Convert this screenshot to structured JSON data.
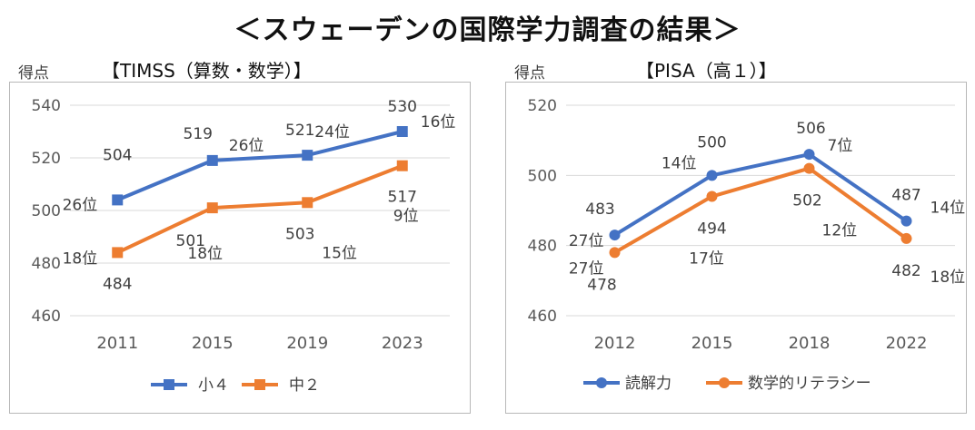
{
  "title": "＜スウェーデンの国際学力調査の結果＞",
  "chart_data": [
    {
      "type": "line",
      "title": "【TIMSS（算数・数学）】",
      "ylabel": "得点",
      "categories": [
        "2011",
        "2015",
        "2019",
        "2023"
      ],
      "ylim": [
        460,
        540
      ],
      "yticks": [
        460,
        480,
        500,
        520,
        540
      ],
      "grid": true,
      "legend": "bottom",
      "series": [
        {
          "name": "小４",
          "color": "#4472C4",
          "values": [
            504,
            519,
            521,
            530
          ],
          "ranks": [
            "26位",
            "26位",
            "24位",
            "16位"
          ]
        },
        {
          "name": "中２",
          "color": "#ED7D31",
          "values": [
            484,
            501,
            503,
            517
          ],
          "ranks": [
            "18位",
            "18位",
            "15位",
            "9位"
          ]
        }
      ]
    },
    {
      "type": "line",
      "title": "【PISA（高１）】",
      "ylabel": "得点",
      "categories": [
        "2012",
        "2015",
        "2018",
        "2022"
      ],
      "ylim": [
        460,
        520
      ],
      "yticks": [
        460,
        480,
        500,
        520
      ],
      "grid": true,
      "legend": "bottom",
      "series": [
        {
          "name": "読解力",
          "color": "#4472C4",
          "values": [
            483,
            500,
            506,
            487
          ],
          "ranks": [
            "27位",
            "14位",
            "7位",
            "14位"
          ]
        },
        {
          "name": "数学的リテラシー",
          "color": "#ED7D31",
          "values": [
            478,
            494,
            502,
            482
          ],
          "ranks": [
            "27位",
            "17位",
            "12位",
            "18位"
          ]
        }
      ]
    }
  ]
}
